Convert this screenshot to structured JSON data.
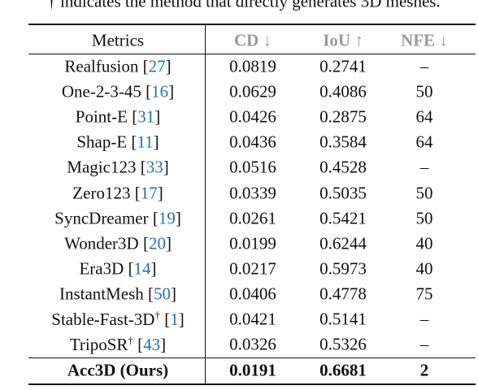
{
  "caption": "† indicates the method that directly generates 3D meshes.",
  "table": {
    "header": [
      "Metrics",
      "CD ↓",
      "IoU ↑",
      "NFE ↓"
    ],
    "rows": [
      {
        "name": "Realfusion",
        "ref": "27",
        "cd": "0.0819",
        "iou": "0.2741",
        "nfe": "–"
      },
      {
        "name": "One-2-3-45",
        "ref": "16",
        "cd": "0.0629",
        "iou": "0.4086",
        "nfe": "50"
      },
      {
        "name": "Point-E",
        "ref": "31",
        "cd": "0.0426",
        "iou": "0.2875",
        "nfe": "64"
      },
      {
        "name": "Shap-E",
        "ref": "11",
        "cd": "0.0436",
        "iou": "0.3584",
        "nfe": "64"
      },
      {
        "name": "Magic123",
        "ref": "33",
        "cd": "0.0516",
        "iou": "0.4528",
        "nfe": "–"
      },
      {
        "name": "Zero123",
        "ref": "17",
        "cd": "0.0339",
        "iou": "0.5035",
        "nfe": "50"
      },
      {
        "name": "SyncDreamer",
        "ref": "19",
        "cd": "0.0261",
        "iou": "0.5421",
        "nfe": "50"
      },
      {
        "name": "Wonder3D",
        "ref": "20",
        "cd": "0.0199",
        "iou": "0.6244",
        "nfe": "40"
      },
      {
        "name": "Era3D",
        "ref": "14",
        "cd": "0.0217",
        "iou": "0.5973",
        "nfe": "40"
      },
      {
        "name": "InstantMesh",
        "ref": "50",
        "cd": "0.0406",
        "iou": "0.4778",
        "nfe": "75"
      },
      {
        "name": "Stable-Fast-3D",
        "mark": "†",
        "ref": "1",
        "cd": "0.0421",
        "iou": "0.5141",
        "nfe": "–"
      },
      {
        "name": "TripoSR",
        "mark": "†",
        "ref": "43",
        "cd": "0.0326",
        "iou": "0.5326",
        "nfe": "–"
      }
    ],
    "ours": {
      "name": "Acc3D (Ours)",
      "cd": "0.0191",
      "iou": "0.6681",
      "nfe": "2"
    }
  }
}
